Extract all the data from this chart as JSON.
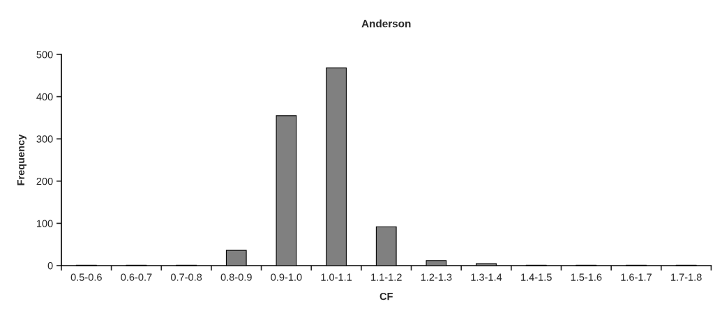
{
  "chart_data": {
    "type": "bar",
    "title": "Anderson",
    "xlabel": "CF",
    "ylabel": "Frequency",
    "categories": [
      "0.5-0.6",
      "0.6-0.7",
      "0.7-0.8",
      "0.8-0.9",
      "0.9-1.0",
      "1.0-1.1",
      "1.1-1.2",
      "1.2-1.3",
      "1.3-1.4",
      "1.4-1.5",
      "1.5-1.6",
      "1.6-1.7",
      "1.7-1.8"
    ],
    "series": [
      {
        "color": "#808080",
        "values": [
          1,
          1,
          1,
          36,
          355,
          468,
          92,
          12,
          5,
          1,
          1,
          1,
          1
        ]
      }
    ],
    "ylim": [
      0,
      500
    ],
    "yticks": [
      0,
      100,
      200,
      300,
      400,
      500
    ],
    "grid": false,
    "legend": false
  }
}
